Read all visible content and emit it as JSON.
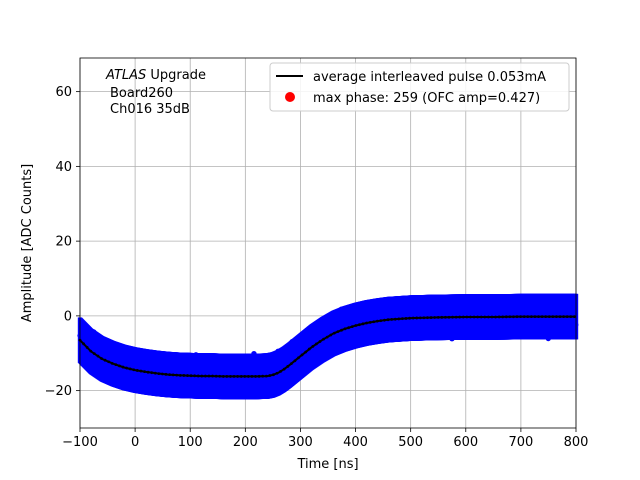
{
  "chart_data": {
    "type": "scatter",
    "title": "",
    "xlabel": "Time [ns]",
    "ylabel": "Amplitude [ADC Counts]",
    "xlim": [
      -100,
      800
    ],
    "ylim": [
      -30,
      69
    ],
    "xticks": [
      -100,
      0,
      100,
      200,
      300,
      400,
      500,
      600,
      700,
      800
    ],
    "yticks": [
      -20,
      0,
      20,
      40,
      60
    ],
    "grid": true,
    "legend_position": "top-right",
    "annotation": {
      "line1_italic": "ATLAS",
      "line1_rest": " Upgrade",
      "line2": "Board260",
      "line3": "Ch016 35dB"
    },
    "series": [
      {
        "name": "average interleaved pulse 0.053mA",
        "kind": "line",
        "color": "#000000",
        "x": [
          -100,
          -80,
          -60,
          -40,
          -20,
          0,
          20,
          40,
          60,
          80,
          100,
          120,
          140,
          160,
          180,
          200,
          220,
          240,
          250,
          260,
          270,
          280,
          290,
          300,
          310,
          320,
          340,
          360,
          380,
          400,
          420,
          440,
          460,
          480,
          500,
          550,
          600,
          650,
          700,
          750,
          800
        ],
        "y": [
          -6.5,
          -9.5,
          -11.5,
          -12.8,
          -13.8,
          -14.5,
          -15.0,
          -15.4,
          -15.7,
          -15.9,
          -16.0,
          -16.1,
          -16.1,
          -16.2,
          -16.2,
          -16.2,
          -16.2,
          -16.1,
          -15.8,
          -15.2,
          -14.3,
          -13.2,
          -12.0,
          -10.8,
          -9.6,
          -8.4,
          -6.4,
          -4.7,
          -3.5,
          -2.6,
          -1.9,
          -1.4,
          -1.0,
          -0.8,
          -0.6,
          -0.4,
          -0.3,
          -0.3,
          -0.2,
          -0.2,
          -0.2
        ]
      },
      {
        "name": "max phase: 259 (OFC amp=0.427)",
        "kind": "scatter",
        "color": "#ff0000"
      }
    ],
    "scatter_cloud": {
      "color": "#0000ff",
      "spread": 5.5,
      "x_start": -100,
      "x_end": 800,
      "x_step": 0.9
    }
  }
}
